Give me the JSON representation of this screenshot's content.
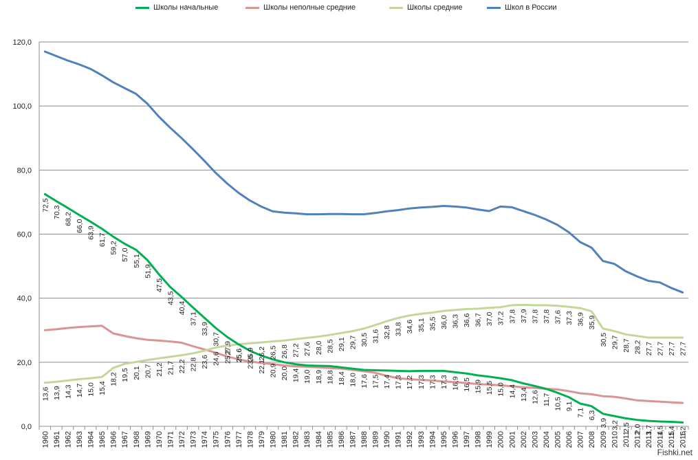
{
  "chart_data": {
    "type": "line",
    "ylim": [
      0,
      120
    ],
    "yticks": [
      "0,0",
      "20,0",
      "40,0",
      "60,0",
      "80,0",
      "100,0",
      "120,0"
    ],
    "grid": true,
    "legend_position": "top",
    "x": [
      "1960",
      "1961",
      "1962",
      "1963",
      "1964",
      "1965",
      "1966",
      "1967",
      "1968",
      "1969",
      "1970",
      "1971",
      "1972",
      "1973",
      "1974",
      "1975",
      "1976",
      "1977",
      "1978",
      "1979",
      "1980",
      "1981",
      "1982",
      "1983",
      "1984",
      "1985",
      "1986",
      "1987",
      "1988",
      "1989",
      "1990",
      "1991",
      "1992",
      "1993",
      "1994",
      "1995",
      "1996",
      "1997",
      "1998",
      "1999",
      "2000",
      "2001",
      "2002",
      "2003",
      "2004",
      "2005",
      "2006",
      "2007",
      "2008",
      "2009",
      "2010",
      "2011",
      "2012",
      "2013",
      "2014",
      "2015",
      "2016"
    ],
    "series": [
      {
        "name": "Школы начальные",
        "color": "#00b050",
        "values": [
          72.5,
          70.3,
          68.2,
          66.0,
          63.9,
          61.7,
          59.2,
          57.0,
          55.1,
          51.9,
          47.5,
          43.5,
          40.4,
          37.1,
          33.9,
          30.7,
          27.9,
          25.6,
          23.6,
          22.1,
          20.9,
          20.0,
          19.4,
          19.0,
          18.9,
          18.8,
          18.4,
          18.0,
          17.6,
          17.5,
          17.4,
          17.3,
          17.2,
          17.3,
          17.3,
          17.3,
          16.9,
          16.5,
          15.9,
          15.5,
          15.0,
          14.4,
          13.4,
          12.6,
          11.7,
          10.5,
          9.1,
          7.1,
          6.3,
          3.9,
          3.2,
          2.5,
          2.0,
          1.7,
          1.5,
          1.4,
          1.2
        ],
        "labels": [
          "72,5",
          "70,3",
          "68,2",
          "66,0",
          "63,9",
          "61,7",
          "59,2",
          "57,0",
          "55,1",
          "51,9",
          "47,5",
          "43,5",
          "40,4",
          "37,1",
          "33,9",
          "30,7",
          "27,9",
          "25,6",
          "23,6",
          "22,1",
          "20,9",
          "20,0",
          "19,4",
          "19,0",
          "18,9",
          "18,8",
          "18,4",
          "18,0",
          "17,6",
          "17,5",
          "17,4",
          "17,3",
          "17,2",
          "17,3",
          "17,3",
          "17,3",
          "16,9",
          "16,5",
          "15,9",
          "15,5",
          "15,0",
          "14,4",
          "13,4",
          "12,6",
          "11,7",
          "10,5",
          "9,1",
          "7,1",
          "6,3",
          "3,9",
          "3,2",
          "2,5",
          "2,0",
          "1,7",
          "1,5",
          "1,4",
          "1,2"
        ]
      },
      {
        "name": "Школы неполные средние",
        "color": "#d99594",
        "values": [
          30.0,
          30.3,
          30.7,
          31.0,
          31.2,
          31.4,
          29.0,
          28.2,
          27.5,
          27.0,
          26.8,
          26.5,
          26.1,
          25.0,
          24.0,
          23.0,
          21.8,
          20.9,
          20.2,
          19.8,
          19.4,
          19.0,
          18.7,
          18.6,
          18.4,
          18.2,
          18.0,
          17.6,
          17.2,
          16.7,
          15.8,
          15.0,
          14.7,
          14.5,
          14.3,
          14.0,
          13.8,
          13.5,
          13.2,
          13.0,
          12.8,
          12.5,
          12.2,
          12.0,
          11.7,
          11.5,
          11.0,
          10.3,
          10.0,
          9.4,
          9.2,
          8.7,
          8.1,
          7.9,
          7.7,
          7.5,
          7.3
        ]
      },
      {
        "name": "Школы средние",
        "color": "#c4d79b",
        "values": [
          13.6,
          13.9,
          14.3,
          14.7,
          15.0,
          15.4,
          18.2,
          19.5,
          20.1,
          20.7,
          21.2,
          21.7,
          22.2,
          22.8,
          23.6,
          24.6,
          25.2,
          25.6,
          25.9,
          26.2,
          26.5,
          26.8,
          27.2,
          27.6,
          28.0,
          28.5,
          29.1,
          29.7,
          30.5,
          31.6,
          32.8,
          33.8,
          34.6,
          35.1,
          35.5,
          36.0,
          36.3,
          36.6,
          36.7,
          37.0,
          37.2,
          37.8,
          37.9,
          37.8,
          37.8,
          37.6,
          37.3,
          36.9,
          35.9,
          30.5,
          29.7,
          28.7,
          28.2,
          27.7,
          27.7,
          27.7,
          27.7
        ],
        "labels": [
          "13,6",
          "13,9",
          "14,3",
          "14,7",
          "15,0",
          "15,4",
          "18,2",
          "19,5",
          "20,1",
          "20,7",
          "21,2",
          "21,7",
          "22,2",
          "22,8",
          "23,6",
          "24,6",
          "25,2",
          "25,6",
          "25,9",
          "26,2",
          "26,5",
          "26,8",
          "27,2",
          "27,6",
          "28,0",
          "28,5",
          "29,1",
          "29,7",
          "30,5",
          "31,6",
          "32,8",
          "33,8",
          "34,6",
          "35,1",
          "35,5",
          "36,0",
          "36,3",
          "36,6",
          "36,7",
          "37,0",
          "37,2",
          "37,8",
          "37,9",
          "37,8",
          "37,8",
          "37,6",
          "37,3",
          "36,9",
          "35,9",
          "30,5",
          "29,7",
          "28,7",
          "28,2",
          "27,7",
          "27,7",
          "27,7",
          "27,7"
        ]
      },
      {
        "name": "Школ в России",
        "color": "#4f81bd",
        "values": [
          117.0,
          115.6,
          114.2,
          113.0,
          111.6,
          109.6,
          107.4,
          105.6,
          103.8,
          100.7,
          96.7,
          93.2,
          90.0,
          86.5,
          82.9,
          79.1,
          75.8,
          72.9,
          70.5,
          68.6,
          67.1,
          66.7,
          66.5,
          66.2,
          66.2,
          66.3,
          66.3,
          66.2,
          66.2,
          66.6,
          67.1,
          67.5,
          68.0,
          68.3,
          68.5,
          68.8,
          68.6,
          68.3,
          67.7,
          67.2,
          68.6,
          68.4,
          67.2,
          66.0,
          64.6,
          62.9,
          60.6,
          57.5,
          55.8,
          51.6,
          50.7,
          48.4,
          46.8,
          45.4,
          44.9,
          43.2,
          41.8
        ]
      }
    ]
  },
  "watermark": "Fishki.net"
}
